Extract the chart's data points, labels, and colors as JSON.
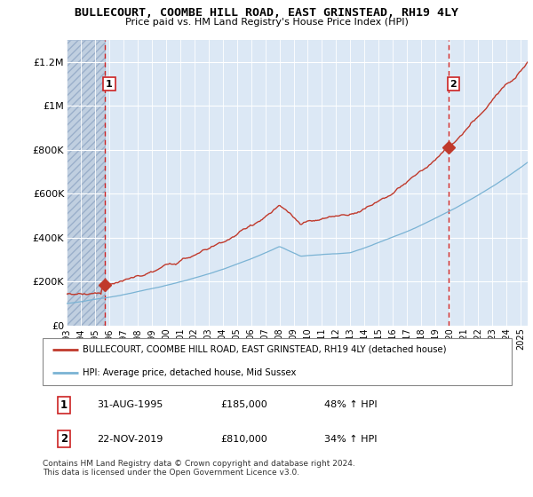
{
  "title": "BULLECOURT, COOMBE HILL ROAD, EAST GRINSTEAD, RH19 4LY",
  "subtitle": "Price paid vs. HM Land Registry's House Price Index (HPI)",
  "ylabel_ticks": [
    "£0",
    "£200K",
    "£400K",
    "£600K",
    "£800K",
    "£1M",
    "£1.2M"
  ],
  "ytick_values": [
    0,
    200000,
    400000,
    600000,
    800000,
    1000000,
    1200000
  ],
  "ylim": [
    0,
    1300000
  ],
  "xlim_start": 1993.0,
  "xlim_end": 2025.5,
  "hpi_color": "#7ab3d4",
  "price_color": "#c0392b",
  "sale1_x": 1995.667,
  "sale1_y": 185000,
  "sale2_x": 2019.917,
  "sale2_y": 810000,
  "legend_line1": "BULLECOURT, COOMBE HILL ROAD, EAST GRINSTEAD, RH19 4LY (detached house)",
  "legend_line2": "HPI: Average price, detached house, Mid Sussex",
  "table_row1": [
    "1",
    "31-AUG-1995",
    "£185,000",
    "48% ↑ HPI"
  ],
  "table_row2": [
    "2",
    "22-NOV-2019",
    "£810,000",
    "34% ↑ HPI"
  ],
  "footnote": "Contains HM Land Registry data © Crown copyright and database right 2024.\nThis data is licensed under the Open Government Licence v3.0.",
  "vline_color": "#cc2222",
  "plot_bg": "#dce8f5",
  "hatch_color": "#c0cfe0",
  "grid_color": "#b8cfe0",
  "hatch_end_x": 1995.667
}
